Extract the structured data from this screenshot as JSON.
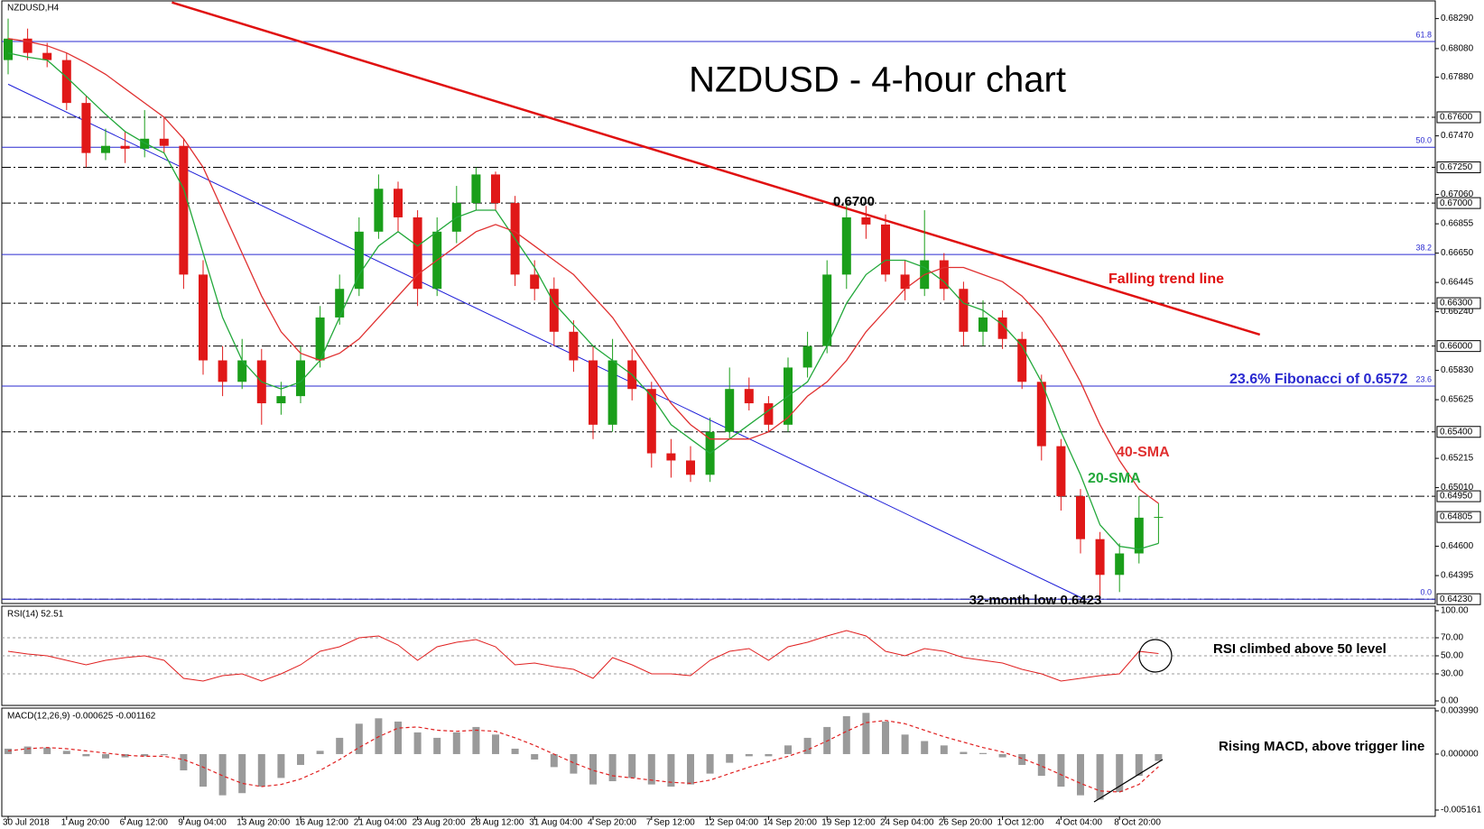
{
  "chart_data": [
    {
      "type": "candlestick",
      "title": "NZDUSD - 4-hour chart",
      "label": "NZDUSD,H4",
      "categories": [
        "30 Jul 2018",
        null,
        null,
        "1 Aug 20:00",
        null,
        null,
        "6 Aug 12:00",
        null,
        null,
        "9 Aug 04:00",
        null,
        null,
        "13 Aug 20:00",
        null,
        null,
        "16 Aug 12:00",
        null,
        null,
        "21 Aug 04:00",
        null,
        null,
        "23 Aug 20:00",
        null,
        null,
        "28 Aug 12:00",
        null,
        null,
        "31 Aug 04:00",
        null,
        null,
        "4 Sep 20:00",
        null,
        null,
        "7 Sep 12:00",
        null,
        null,
        "12 Sep 04:00",
        null,
        null,
        "14 Sep 20:00",
        null,
        null,
        "19 Sep 12:00",
        null,
        null,
        "24 Sep 04:00",
        null,
        null,
        "26 Sep 20:00",
        null,
        null,
        "1 Oct 12:00",
        null,
        null,
        "4 Oct 04:00",
        null,
        null,
        "8 Oct 20:00",
        null,
        null
      ],
      "open": [
        0.68,
        0.6815,
        0.6805,
        0.68,
        0.677,
        0.6735,
        0.674,
        0.6738,
        0.6745,
        0.674,
        0.665,
        0.659,
        0.6575,
        0.659,
        0.656,
        0.6565,
        0.659,
        0.662,
        0.664,
        0.668,
        0.671,
        0.669,
        0.664,
        0.668,
        0.67,
        0.672,
        0.67,
        0.665,
        0.664,
        0.661,
        0.659,
        0.6545,
        0.659,
        0.657,
        0.6525,
        0.652,
        0.651,
        0.654,
        0.657,
        0.656,
        0.6545,
        0.6585,
        0.66,
        0.665,
        0.669,
        0.6685,
        0.665,
        0.664,
        0.666,
        0.664,
        0.661,
        0.662,
        0.6605,
        0.6575,
        0.653,
        0.6495,
        0.6465,
        0.644,
        0.6455,
        0.648
      ],
      "high": [
        0.6829,
        0.6822,
        0.6812,
        0.6805,
        0.6775,
        0.6752,
        0.675,
        0.6765,
        0.676,
        0.6745,
        0.666,
        0.66,
        0.6605,
        0.6598,
        0.6575,
        0.66,
        0.6628,
        0.665,
        0.669,
        0.672,
        0.6715,
        0.6695,
        0.669,
        0.6712,
        0.6725,
        0.6722,
        0.6705,
        0.666,
        0.6648,
        0.6618,
        0.66,
        0.6605,
        0.6598,
        0.6575,
        0.6535,
        0.653,
        0.655,
        0.6585,
        0.6578,
        0.6565,
        0.6592,
        0.661,
        0.666,
        0.67,
        0.6698,
        0.6692,
        0.666,
        0.6695,
        0.6665,
        0.6645,
        0.6632,
        0.6625,
        0.661,
        0.658,
        0.6535,
        0.65,
        0.647,
        0.6462,
        0.6495,
        0.649
      ],
      "low": [
        0.679,
        0.68,
        0.6795,
        0.6765,
        0.6725,
        0.673,
        0.6728,
        0.6732,
        0.6735,
        0.664,
        0.658,
        0.6565,
        0.657,
        0.6545,
        0.6552,
        0.656,
        0.6585,
        0.6615,
        0.6635,
        0.6675,
        0.668,
        0.6628,
        0.6635,
        0.6672,
        0.6695,
        0.6695,
        0.6642,
        0.6632,
        0.66,
        0.6582,
        0.6535,
        0.654,
        0.6562,
        0.6515,
        0.6508,
        0.6505,
        0.6505,
        0.6535,
        0.6555,
        0.654,
        0.654,
        0.6578,
        0.6595,
        0.664,
        0.6675,
        0.6645,
        0.6632,
        0.6635,
        0.6632,
        0.66,
        0.66,
        0.6598,
        0.657,
        0.652,
        0.6485,
        0.6455,
        0.6423,
        0.6428,
        0.6448,
        0.6462
      ],
      "close": [
        0.6815,
        0.6805,
        0.68,
        0.677,
        0.6735,
        0.674,
        0.6738,
        0.6745,
        0.674,
        0.665,
        0.659,
        0.6575,
        0.659,
        0.656,
        0.6565,
        0.659,
        0.662,
        0.664,
        0.668,
        0.671,
        0.669,
        0.664,
        0.668,
        0.67,
        0.672,
        0.67,
        0.665,
        0.664,
        0.661,
        0.659,
        0.6545,
        0.659,
        0.657,
        0.6525,
        0.652,
        0.651,
        0.654,
        0.657,
        0.656,
        0.6545,
        0.6585,
        0.66,
        0.665,
        0.669,
        0.6685,
        0.665,
        0.664,
        0.666,
        0.664,
        0.661,
        0.662,
        0.6605,
        0.6575,
        0.653,
        0.6495,
        0.6465,
        0.644,
        0.6455,
        0.648,
        0.64805
      ],
      "up_color": "#1a9e1a",
      "down_color": "#e01818",
      "series": [
        {
          "name": "20-SMA",
          "color": "#22a83a",
          "values": [
            0.6805,
            0.6802,
            0.68,
            0.6788,
            0.6775,
            0.6762,
            0.675,
            0.6742,
            0.6735,
            0.671,
            0.6665,
            0.662,
            0.659,
            0.6575,
            0.657,
            0.6575,
            0.659,
            0.662,
            0.665,
            0.667,
            0.668,
            0.667,
            0.668,
            0.669,
            0.6695,
            0.6695,
            0.6675,
            0.6655,
            0.663,
            0.6615,
            0.66,
            0.659,
            0.658,
            0.6565,
            0.6545,
            0.6535,
            0.6525,
            0.6535,
            0.6545,
            0.6555,
            0.6565,
            0.6575,
            0.66,
            0.663,
            0.665,
            0.666,
            0.666,
            0.6655,
            0.6645,
            0.663,
            0.6625,
            0.6615,
            0.66,
            0.6575,
            0.654,
            0.651,
            0.6475,
            0.646,
            0.6458,
            0.6462
          ]
        },
        {
          "name": "40-SMA",
          "color": "#e03030",
          "values": [
            0.6815,
            0.6813,
            0.681,
            0.6805,
            0.6798,
            0.679,
            0.678,
            0.677,
            0.676,
            0.6745,
            0.6725,
            0.6695,
            0.6665,
            0.6635,
            0.661,
            0.6595,
            0.659,
            0.6595,
            0.6605,
            0.662,
            0.6635,
            0.665,
            0.666,
            0.667,
            0.668,
            0.6685,
            0.668,
            0.667,
            0.666,
            0.665,
            0.6635,
            0.662,
            0.66,
            0.658,
            0.656,
            0.6545,
            0.6535,
            0.6535,
            0.6535,
            0.654,
            0.655,
            0.6565,
            0.6575,
            0.659,
            0.661,
            0.6625,
            0.664,
            0.665,
            0.6655,
            0.6655,
            0.665,
            0.6645,
            0.6635,
            0.662,
            0.66,
            0.6575,
            0.6545,
            0.652,
            0.65,
            0.649
          ]
        }
      ],
      "ylim": [
        0.642,
        0.6842
      ],
      "yticks": [
        {
          "value": 0.6829,
          "label": "0.68290"
        },
        {
          "value": 0.6808,
          "label": "0.68080"
        },
        {
          "value": 0.6788,
          "label": "0.67880"
        },
        {
          "value": 0.6747,
          "label": "0.67470"
        },
        {
          "value": 0.6706,
          "label": "0.67060"
        },
        0.66855,
        {
          "value": 0.6665,
          "label": "0.66650"
        },
        0.66445,
        {
          "value": 0.6624,
          "label": "0.66240"
        },
        {
          "value": 0.6583,
          "label": "0.65830"
        },
        0.65625,
        0.65215,
        {
          "value": 0.6501,
          "label": "0.65010"
        },
        {
          "value": 0.646,
          "label": "0.64600"
        },
        0.64395
      ],
      "levels": [
        {
          "value": 0.676,
          "label": "0.67600"
        },
        {
          "value": 0.6725,
          "label": "0.67250"
        },
        {
          "value": 0.67,
          "label": "0.67000"
        },
        {
          "value": 0.663,
          "label": "0.66300"
        },
        {
          "value": 0.66,
          "label": "0.66000"
        },
        {
          "value": 0.654,
          "label": "0.65400"
        },
        {
          "value": 0.6495,
          "label": "0.64950"
        },
        {
          "value": 0.6423,
          "label": "0.64230"
        }
      ],
      "fib_levels": [
        {
          "value": 0.6813,
          "label": "61.8"
        },
        {
          "value": 0.6739,
          "label": "50.0"
        },
        {
          "value": 0.6664,
          "label": "38.2"
        },
        {
          "value": 0.6572,
          "label": "23.6"
        },
        {
          "value": 0.6423,
          "label": "0.0"
        }
      ],
      "fib_color": "#2a2ad0",
      "last_price": {
        "value": 0.64805,
        "label": "0.64805"
      },
      "trend_lines": [
        {
          "name": "Falling trend line",
          "color": "#e01010",
          "x": [
            8.4,
            64.2
          ],
          "y": [
            0.68403,
            0.6608
          ]
        },
        {
          "color": "#1c1cd8",
          "x": [
            0,
            55.2
          ],
          "y": [
            0.67831,
            0.6423
          ]
        }
      ],
      "annotations": {
        "peak": "0.6700",
        "fib": "23.6% Fibonacci of 0.6572",
        "low": "32-month low 0.6423"
      }
    },
    {
      "type": "line",
      "label": "RSI(14) 52.51",
      "color": "#e02020",
      "values": [
        55,
        52,
        50,
        45,
        40,
        45,
        48,
        50,
        45,
        25,
        22,
        28,
        30,
        22,
        30,
        40,
        55,
        60,
        70,
        72,
        62,
        45,
        60,
        65,
        68,
        60,
        40,
        42,
        38,
        35,
        25,
        48,
        40,
        30,
        30,
        28,
        45,
        55,
        58,
        45,
        60,
        65,
        72,
        78,
        72,
        55,
        50,
        58,
        55,
        48,
        45,
        42,
        35,
        30,
        22,
        25,
        28,
        30,
        55,
        52.51
      ],
      "ylim": [
        0,
        100
      ],
      "yticks": [
        {
          "value": 100,
          "label": "100.00"
        },
        {
          "value": 70,
          "label": "70.00"
        },
        {
          "value": 50,
          "label": "50.00"
        },
        {
          "value": 30,
          "label": "30.00"
        },
        {
          "value": 0,
          "label": "0.00"
        }
      ],
      "annotation": "RSI climbed above 50 level"
    },
    {
      "type": "macd",
      "label": "MACD(12,26,9) -0.000625 -0.001162",
      "hist_color": "#9a9a9a",
      "signal_color": "#e02020",
      "histogram": [
        0.0005,
        0.0007,
        0.0006,
        0.0003,
        -0.0002,
        -0.0004,
        -0.0003,
        -0.0002,
        -0.0001,
        -0.0015,
        -0.003,
        -0.0038,
        -0.0036,
        -0.003,
        -0.0022,
        -0.001,
        0.0003,
        0.0015,
        0.0028,
        0.0033,
        0.003,
        0.002,
        0.0015,
        0.002,
        0.0025,
        0.0018,
        0.0005,
        -0.0005,
        -0.0012,
        -0.0018,
        -0.0028,
        -0.0025,
        -0.0022,
        -0.0028,
        -0.003,
        -0.0028,
        -0.0018,
        -0.0008,
        -0.0002,
        -0.0002,
        0.0008,
        0.0015,
        0.0025,
        0.0035,
        0.0038,
        0.003,
        0.0018,
        0.0012,
        0.0008,
        0.0002,
        0.0001,
        -0.0003,
        -0.001,
        -0.002,
        -0.003,
        -0.0038,
        -0.0042,
        -0.0035,
        -0.002,
        -0.000625
      ],
      "signal": [
        0.0003,
        0.0005,
        0.0006,
        0.0005,
        0.0003,
        0.0001,
        -0.0001,
        -0.0002,
        -0.0002,
        -0.0005,
        -0.0012,
        -0.002,
        -0.0027,
        -0.003,
        -0.0028,
        -0.0023,
        -0.0015,
        -0.0005,
        0.0006,
        0.0016,
        0.0024,
        0.0025,
        0.0022,
        0.0021,
        0.0022,
        0.0021,
        0.0015,
        0.0008,
        0,
        -0.0008,
        -0.0015,
        -0.002,
        -0.0022,
        -0.0024,
        -0.0026,
        -0.0027,
        -0.0024,
        -0.0018,
        -0.0012,
        -0.0007,
        -0.0002,
        0.0004,
        0.0012,
        0.0021,
        0.0029,
        0.0031,
        0.0028,
        0.0022,
        0.0016,
        0.0011,
        0.0006,
        0.0002,
        -0.0004,
        -0.0011,
        -0.0019,
        -0.0027,
        -0.0034,
        -0.0035,
        -0.0028,
        -0.001162
      ],
      "ylim": [
        -0.005161,
        0.00399
      ],
      "yticks": [
        {
          "value": 0.00399,
          "label": "0.003990"
        },
        {
          "value": 0,
          "label": "0.000000"
        },
        {
          "value": -0.005161,
          "label": "-0.005161"
        }
      ],
      "annotation": "Rising MACD, above trigger line"
    }
  ]
}
